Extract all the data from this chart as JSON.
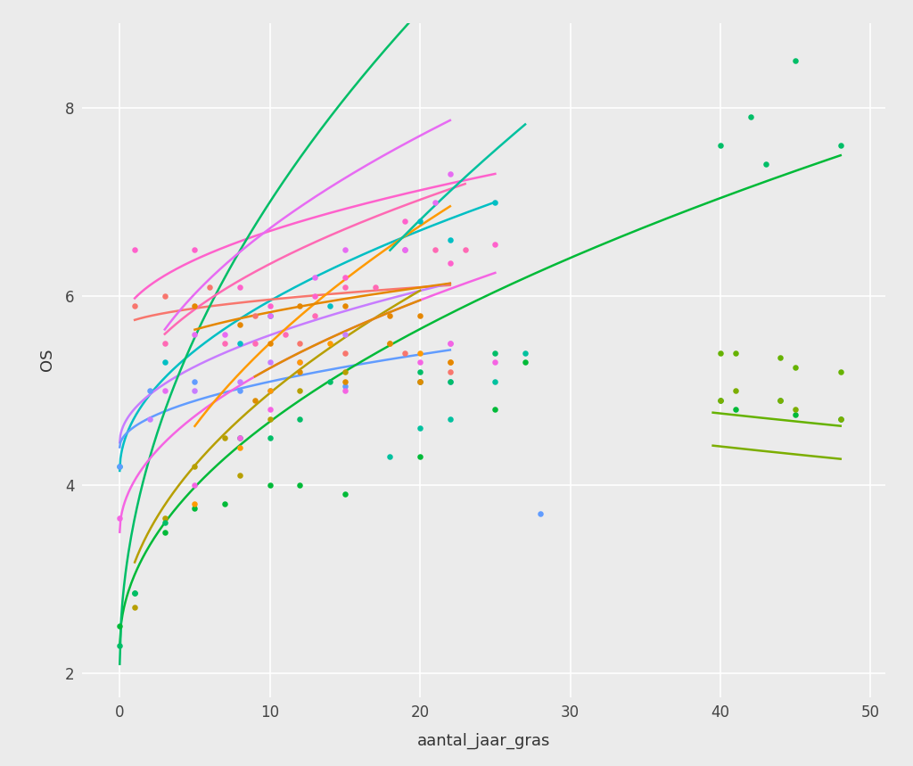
{
  "background_color": "#EBEBEB",
  "grid_color": "#FFFFFF",
  "xlabel": "aantal_jaar_gras",
  "ylabel": "OS",
  "xlim": [
    -2.5,
    51
  ],
  "ylim": [
    1.75,
    8.9
  ],
  "xticks": [
    0,
    10,
    20,
    30,
    40,
    50
  ],
  "yticks": [
    2,
    4,
    6,
    8
  ],
  "series": [
    {
      "id": "cyan_high",
      "color": "#00BFC4",
      "points": [
        [
          0,
          4.2
        ],
        [
          3,
          5.3
        ],
        [
          8,
          5.5
        ],
        [
          10,
          5.8
        ],
        [
          14,
          5.9
        ],
        [
          20,
          6.8
        ],
        [
          22,
          6.6
        ],
        [
          25,
          7.0
        ]
      ],
      "fit_x0": 0,
      "fit_x1": 25,
      "fit_a": 4.15,
      "fit_b": 0.57
    },
    {
      "id": "pink_bright",
      "color": "#FF61CC",
      "points": [
        [
          1,
          6.5
        ],
        [
          5,
          6.5
        ],
        [
          8,
          6.1
        ],
        [
          10,
          5.9
        ],
        [
          13,
          6.0
        ],
        [
          15,
          6.2
        ],
        [
          19,
          6.8
        ],
        [
          22,
          6.35
        ],
        [
          25,
          6.55
        ]
      ],
      "fit_x0": 1,
      "fit_x1": 25,
      "fit_a": 5.65,
      "fit_b": 0.33
    },
    {
      "id": "salmon",
      "color": "#F8766D",
      "points": [
        [
          1,
          5.9
        ],
        [
          3,
          6.0
        ],
        [
          6,
          6.1
        ],
        [
          9,
          5.8
        ],
        [
          12,
          5.5
        ],
        [
          15,
          5.4
        ],
        [
          19,
          5.4
        ],
        [
          22,
          5.2
        ]
      ],
      "fit_x0": 1,
      "fit_x1": 22,
      "fit_a": 5.65,
      "fit_b": 0.1
    },
    {
      "id": "purple",
      "color": "#C77CFF",
      "points": [
        [
          2,
          4.7
        ],
        [
          5,
          5.0
        ],
        [
          8,
          5.1
        ],
        [
          10,
          5.3
        ],
        [
          12,
          5.3
        ],
        [
          15,
          5.6
        ],
        [
          22,
          5.5
        ]
      ],
      "fit_x0": 0,
      "fit_x1": 22,
      "fit_a": 4.45,
      "fit_b": 0.36
    },
    {
      "id": "blue",
      "color": "#619CFF",
      "points": [
        [
          0,
          4.2
        ],
        [
          2,
          5.0
        ],
        [
          5,
          5.1
        ],
        [
          8,
          5.0
        ],
        [
          10,
          5.0
        ],
        [
          15,
          5.05
        ],
        [
          20,
          5.1
        ],
        [
          22,
          5.1
        ],
        [
          28,
          3.7
        ]
      ],
      "fit_x0": 0,
      "fit_x1": 22,
      "fit_a": 4.4,
      "fit_b": 0.22
    },
    {
      "id": "olive1",
      "color": "#B79F00",
      "points": [
        [
          1,
          2.7
        ],
        [
          3,
          3.65
        ],
        [
          5,
          4.2
        ],
        [
          7,
          4.5
        ],
        [
          8,
          4.1
        ],
        [
          10,
          4.7
        ],
        [
          12,
          5.0
        ],
        [
          15,
          5.2
        ],
        [
          20,
          5.1
        ]
      ],
      "fit_x0": 1,
      "fit_x1": 20,
      "fit_a": 2.35,
      "fit_b": 0.83
    },
    {
      "id": "green_low",
      "color": "#00BA38",
      "points": [
        [
          0,
          2.5
        ],
        [
          1,
          2.85
        ],
        [
          3,
          3.5
        ],
        [
          5,
          3.75
        ],
        [
          7,
          3.8
        ],
        [
          10,
          4.0
        ],
        [
          12,
          4.0
        ],
        [
          15,
          3.9
        ],
        [
          20,
          4.3
        ],
        [
          25,
          4.8
        ],
        [
          27,
          5.3
        ],
        [
          40,
          4.9
        ],
        [
          41,
          4.8
        ],
        [
          44,
          4.9
        ],
        [
          45,
          4.75
        ],
        [
          48,
          4.7
        ]
      ],
      "fit_x0": 0,
      "fit_x1": 48,
      "fit_a": 2.3,
      "fit_b": 0.75
    },
    {
      "id": "green_high",
      "color": "#00BE67",
      "points": [
        [
          0,
          2.3
        ],
        [
          1,
          2.85
        ],
        [
          3,
          3.6
        ],
        [
          8,
          4.5
        ],
        [
          10,
          4.5
        ],
        [
          12,
          4.7
        ],
        [
          14,
          5.1
        ],
        [
          20,
          5.2
        ],
        [
          22,
          5.1
        ],
        [
          25,
          5.4
        ],
        [
          40,
          7.6
        ],
        [
          42,
          7.9
        ],
        [
          43,
          7.4
        ],
        [
          45,
          8.5
        ],
        [
          48,
          7.6
        ]
      ],
      "fit_x0": 0,
      "fit_x1": 48,
      "fit_a": 2.1,
      "fit_b": 1.55
    },
    {
      "id": "hotpink",
      "color": "#FF69B4",
      "points": [
        [
          3,
          5.5
        ],
        [
          7,
          5.5
        ],
        [
          9,
          5.5
        ],
        [
          11,
          5.6
        ],
        [
          13,
          5.8
        ],
        [
          15,
          6.1
        ],
        [
          17,
          6.1
        ],
        [
          19,
          6.5
        ],
        [
          21,
          6.5
        ],
        [
          23,
          6.5
        ]
      ],
      "fit_x0": 3,
      "fit_x1": 23,
      "fit_a": 4.7,
      "fit_b": 0.52
    },
    {
      "id": "violet",
      "color": "#F564E3",
      "points": [
        [
          0,
          3.65
        ],
        [
          5,
          4.0
        ],
        [
          8,
          4.5
        ],
        [
          10,
          4.8
        ],
        [
          15,
          5.0
        ],
        [
          20,
          5.3
        ],
        [
          22,
          5.5
        ],
        [
          25,
          5.3
        ]
      ],
      "fit_x0": 0,
      "fit_x1": 25,
      "fit_a": 3.5,
      "fit_b": 0.55
    },
    {
      "id": "orchid",
      "color": "#E76BF3",
      "points": [
        [
          3,
          5.0
        ],
        [
          5,
          5.6
        ],
        [
          7,
          5.6
        ],
        [
          10,
          5.8
        ],
        [
          13,
          6.2
        ],
        [
          15,
          6.5
        ],
        [
          19,
          6.5
        ],
        [
          21,
          7.0
        ],
        [
          22,
          7.3
        ]
      ],
      "fit_x0": 3,
      "fit_x1": 22,
      "fit_a": 4.35,
      "fit_b": 0.75
    },
    {
      "id": "orange",
      "color": "#FF9A00",
      "points": [
        [
          5,
          3.8
        ],
        [
          8,
          4.4
        ],
        [
          10,
          5.0
        ],
        [
          12,
          5.3
        ],
        [
          14,
          5.5
        ],
        [
          18,
          5.5
        ],
        [
          20,
          5.4
        ],
        [
          22,
          5.3
        ]
      ],
      "fit_x0": 5,
      "fit_x1": 22,
      "fit_a": 2.5,
      "fit_b": 0.95
    },
    {
      "id": "orange2",
      "color": "#E58700",
      "points": [
        [
          5,
          5.9
        ],
        [
          8,
          5.7
        ],
        [
          10,
          5.5
        ],
        [
          12,
          5.9
        ],
        [
          15,
          5.9
        ],
        [
          18,
          5.8
        ],
        [
          20,
          5.8
        ],
        [
          22,
          5.3
        ]
      ],
      "fit_x0": 5,
      "fit_x1": 22,
      "fit_a": 5.2,
      "fit_b": 0.2
    },
    {
      "id": "teal",
      "color": "#00C19F",
      "points": [
        [
          18,
          4.3
        ],
        [
          20,
          4.6
        ],
        [
          22,
          4.7
        ],
        [
          25,
          5.1
        ],
        [
          27,
          5.4
        ]
      ],
      "fit_x0": 18,
      "fit_x1": 27,
      "fit_a": 0.55,
      "fit_b": 1.4
    },
    {
      "id": "darkorange",
      "color": "#DE8C00",
      "points": [
        [
          9,
          4.9
        ],
        [
          12,
          5.2
        ],
        [
          15,
          5.1
        ],
        [
          18,
          5.5
        ],
        [
          20,
          5.1
        ]
      ],
      "fit_x0": 9,
      "fit_x1": 20,
      "fit_a": 3.5,
      "fit_b": 0.55
    },
    {
      "id": "olive2",
      "color": "#7CAE00",
      "points": [
        [
          40,
          4.9
        ],
        [
          41,
          5.0
        ],
        [
          44,
          4.9
        ],
        [
          45,
          4.8
        ],
        [
          48,
          4.7
        ]
      ],
      "fit_x0": 39.5,
      "fit_x1": 48,
      "fit_a": 5.8,
      "fit_b": -0.22
    },
    {
      "id": "olive3",
      "color": "#66B200",
      "points": [
        [
          40,
          5.4
        ],
        [
          41,
          5.4
        ],
        [
          44,
          5.35
        ],
        [
          45,
          5.25
        ],
        [
          48,
          5.2
        ]
      ],
      "fit_x0": 39.5,
      "fit_x1": 48,
      "fit_a": 6.15,
      "fit_b": -0.22
    }
  ]
}
